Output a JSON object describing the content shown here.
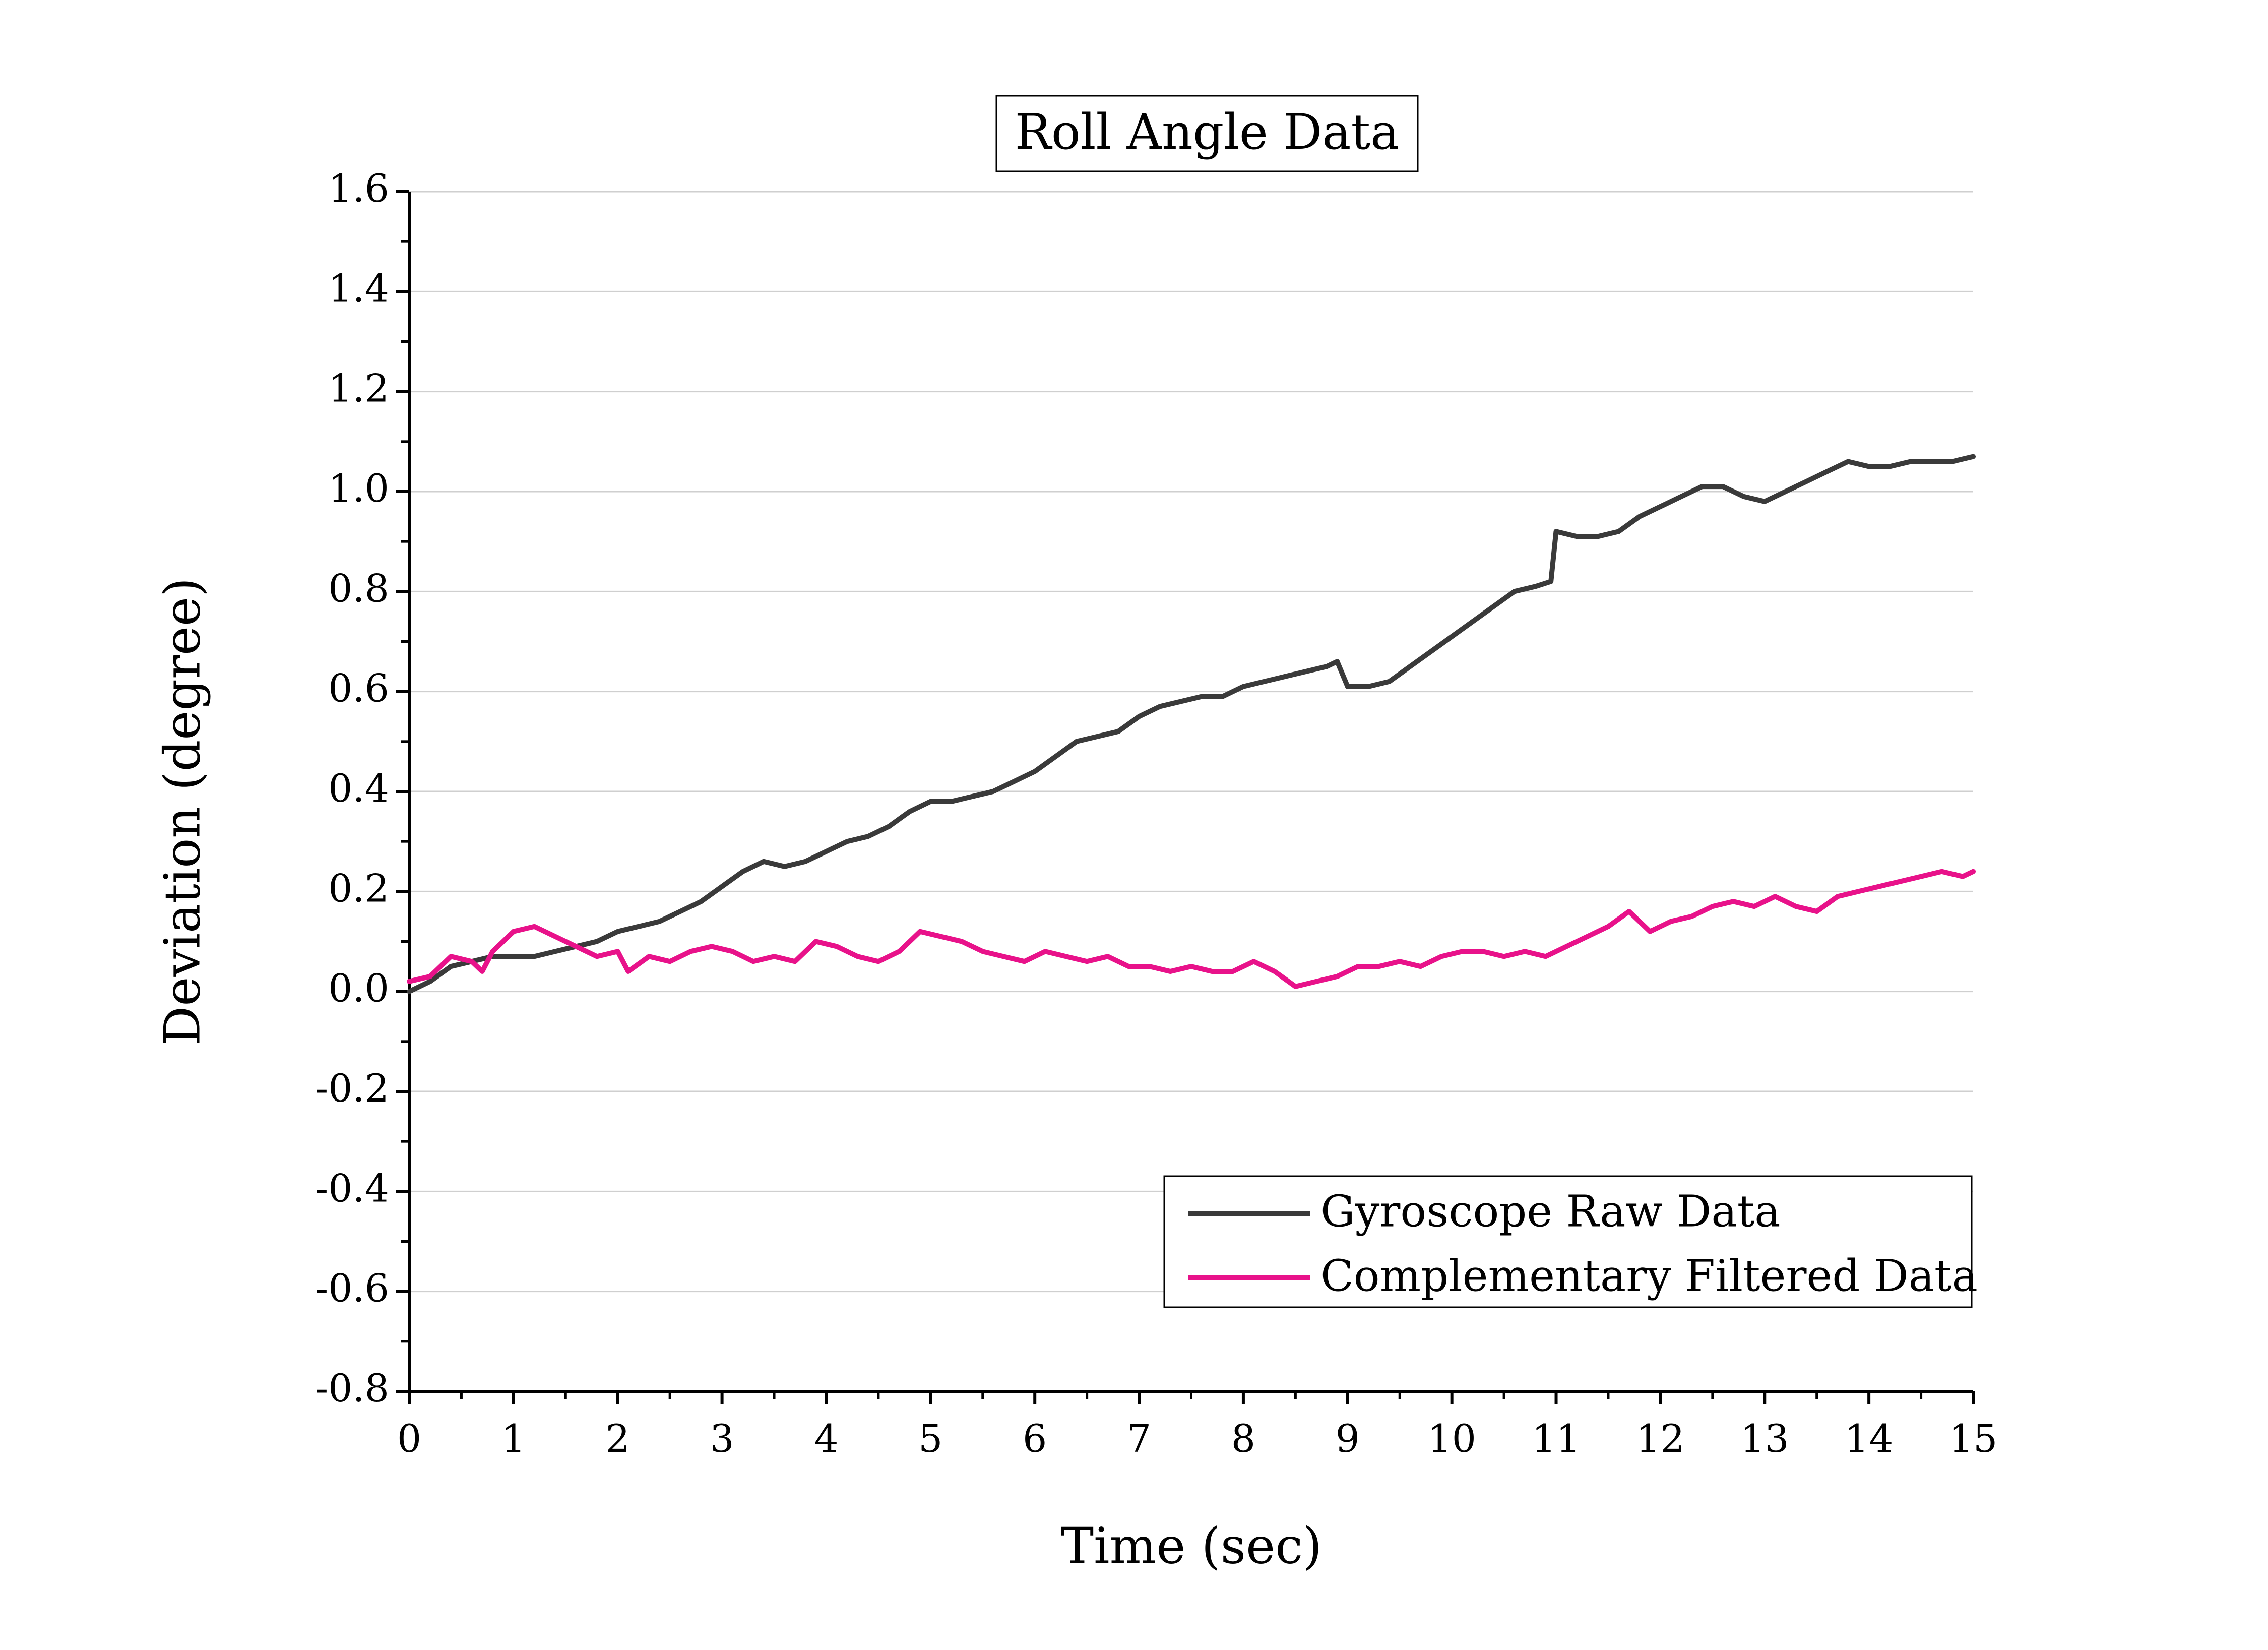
{
  "chart_data": {
    "type": "line",
    "title": "Roll Angle Data",
    "xlabel": "Time (sec)",
    "ylabel": "Deviation (degree)",
    "xlim": [
      0,
      15
    ],
    "ylim": [
      -0.8,
      1.6
    ],
    "x_ticks": [
      "0",
      "1",
      "2",
      "3",
      "4",
      "5",
      "6",
      "7",
      "8",
      "9",
      "10",
      "11",
      "12",
      "13",
      "14",
      "15"
    ],
    "y_ticks": [
      "-0.8",
      "-0.6",
      "-0.4",
      "-0.2",
      "0.0",
      "0.2",
      "0.4",
      "0.6",
      "0.8",
      "1.0",
      "1.2",
      "1.4",
      "1.6"
    ],
    "grid": true,
    "legend_position": "bottom-right",
    "series": [
      {
        "name": "Gyroscope Raw Data",
        "color": "#3a3a3a",
        "points": [
          [
            0,
            0.0
          ],
          [
            0.2,
            0.02
          ],
          [
            0.4,
            0.05
          ],
          [
            0.6,
            0.06
          ],
          [
            0.8,
            0.07
          ],
          [
            1.0,
            0.07
          ],
          [
            1.2,
            0.07
          ],
          [
            1.4,
            0.08
          ],
          [
            1.6,
            0.09
          ],
          [
            1.8,
            0.1
          ],
          [
            2.0,
            0.12
          ],
          [
            2.2,
            0.13
          ],
          [
            2.4,
            0.14
          ],
          [
            2.6,
            0.16
          ],
          [
            2.8,
            0.18
          ],
          [
            3.0,
            0.21
          ],
          [
            3.2,
            0.24
          ],
          [
            3.4,
            0.26
          ],
          [
            3.6,
            0.25
          ],
          [
            3.8,
            0.26
          ],
          [
            4.0,
            0.28
          ],
          [
            4.2,
            0.3
          ],
          [
            4.4,
            0.31
          ],
          [
            4.6,
            0.33
          ],
          [
            4.8,
            0.36
          ],
          [
            5.0,
            0.38
          ],
          [
            5.2,
            0.38
          ],
          [
            5.4,
            0.39
          ],
          [
            5.6,
            0.4
          ],
          [
            5.8,
            0.42
          ],
          [
            6.0,
            0.44
          ],
          [
            6.2,
            0.47
          ],
          [
            6.4,
            0.5
          ],
          [
            6.6,
            0.51
          ],
          [
            6.8,
            0.52
          ],
          [
            7.0,
            0.55
          ],
          [
            7.2,
            0.57
          ],
          [
            7.4,
            0.58
          ],
          [
            7.6,
            0.59
          ],
          [
            7.8,
            0.59
          ],
          [
            8.0,
            0.61
          ],
          [
            8.2,
            0.62
          ],
          [
            8.4,
            0.63
          ],
          [
            8.6,
            0.64
          ],
          [
            8.8,
            0.65
          ],
          [
            8.9,
            0.66
          ],
          [
            9.0,
            0.61
          ],
          [
            9.2,
            0.61
          ],
          [
            9.4,
            0.62
          ],
          [
            9.6,
            0.65
          ],
          [
            9.8,
            0.68
          ],
          [
            10.0,
            0.71
          ],
          [
            10.2,
            0.74
          ],
          [
            10.4,
            0.77
          ],
          [
            10.6,
            0.8
          ],
          [
            10.8,
            0.81
          ],
          [
            10.95,
            0.82
          ],
          [
            11.0,
            0.92
          ],
          [
            11.2,
            0.91
          ],
          [
            11.4,
            0.91
          ],
          [
            11.6,
            0.92
          ],
          [
            11.8,
            0.95
          ],
          [
            12.0,
            0.97
          ],
          [
            12.2,
            0.99
          ],
          [
            12.4,
            1.01
          ],
          [
            12.6,
            1.01
          ],
          [
            12.8,
            0.99
          ],
          [
            13.0,
            0.98
          ],
          [
            13.2,
            1.0
          ],
          [
            13.4,
            1.02
          ],
          [
            13.6,
            1.04
          ],
          [
            13.8,
            1.06
          ],
          [
            14.0,
            1.05
          ],
          [
            14.2,
            1.05
          ],
          [
            14.4,
            1.06
          ],
          [
            14.6,
            1.06
          ],
          [
            14.8,
            1.06
          ],
          [
            15.0,
            1.07
          ]
        ]
      },
      {
        "name": "Complementary Filtered Data",
        "color": "#e8128a",
        "points": [
          [
            0,
            0.02
          ],
          [
            0.2,
            0.03
          ],
          [
            0.4,
            0.07
          ],
          [
            0.6,
            0.06
          ],
          [
            0.7,
            0.04
          ],
          [
            0.8,
            0.08
          ],
          [
            1.0,
            0.12
          ],
          [
            1.2,
            0.13
          ],
          [
            1.4,
            0.11
          ],
          [
            1.6,
            0.09
          ],
          [
            1.8,
            0.07
          ],
          [
            2.0,
            0.08
          ],
          [
            2.1,
            0.04
          ],
          [
            2.3,
            0.07
          ],
          [
            2.5,
            0.06
          ],
          [
            2.7,
            0.08
          ],
          [
            2.9,
            0.09
          ],
          [
            3.1,
            0.08
          ],
          [
            3.3,
            0.06
          ],
          [
            3.5,
            0.07
          ],
          [
            3.7,
            0.06
          ],
          [
            3.9,
            0.1
          ],
          [
            4.1,
            0.09
          ],
          [
            4.3,
            0.07
          ],
          [
            4.5,
            0.06
          ],
          [
            4.7,
            0.08
          ],
          [
            4.9,
            0.12
          ],
          [
            5.1,
            0.11
          ],
          [
            5.3,
            0.1
          ],
          [
            5.5,
            0.08
          ],
          [
            5.7,
            0.07
          ],
          [
            5.9,
            0.06
          ],
          [
            6.1,
            0.08
          ],
          [
            6.3,
            0.07
          ],
          [
            6.5,
            0.06
          ],
          [
            6.7,
            0.07
          ],
          [
            6.9,
            0.05
          ],
          [
            7.1,
            0.05
          ],
          [
            7.3,
            0.04
          ],
          [
            7.5,
            0.05
          ],
          [
            7.7,
            0.04
          ],
          [
            7.9,
            0.04
          ],
          [
            8.1,
            0.06
          ],
          [
            8.3,
            0.04
          ],
          [
            8.5,
            0.01
          ],
          [
            8.7,
            0.02
          ],
          [
            8.9,
            0.03
          ],
          [
            9.1,
            0.05
          ],
          [
            9.3,
            0.05
          ],
          [
            9.5,
            0.06
          ],
          [
            9.7,
            0.05
          ],
          [
            9.9,
            0.07
          ],
          [
            10.1,
            0.08
          ],
          [
            10.3,
            0.08
          ],
          [
            10.5,
            0.07
          ],
          [
            10.7,
            0.08
          ],
          [
            10.9,
            0.07
          ],
          [
            11.1,
            0.09
          ],
          [
            11.3,
            0.11
          ],
          [
            11.5,
            0.13
          ],
          [
            11.7,
            0.16
          ],
          [
            11.9,
            0.12
          ],
          [
            12.1,
            0.14
          ],
          [
            12.3,
            0.15
          ],
          [
            12.5,
            0.17
          ],
          [
            12.7,
            0.18
          ],
          [
            12.9,
            0.17
          ],
          [
            13.1,
            0.19
          ],
          [
            13.3,
            0.17
          ],
          [
            13.5,
            0.16
          ],
          [
            13.7,
            0.19
          ],
          [
            13.9,
            0.2
          ],
          [
            14.1,
            0.21
          ],
          [
            14.3,
            0.22
          ],
          [
            14.5,
            0.23
          ],
          [
            14.7,
            0.24
          ],
          [
            14.9,
            0.23
          ],
          [
            15.0,
            0.24
          ]
        ]
      }
    ]
  }
}
